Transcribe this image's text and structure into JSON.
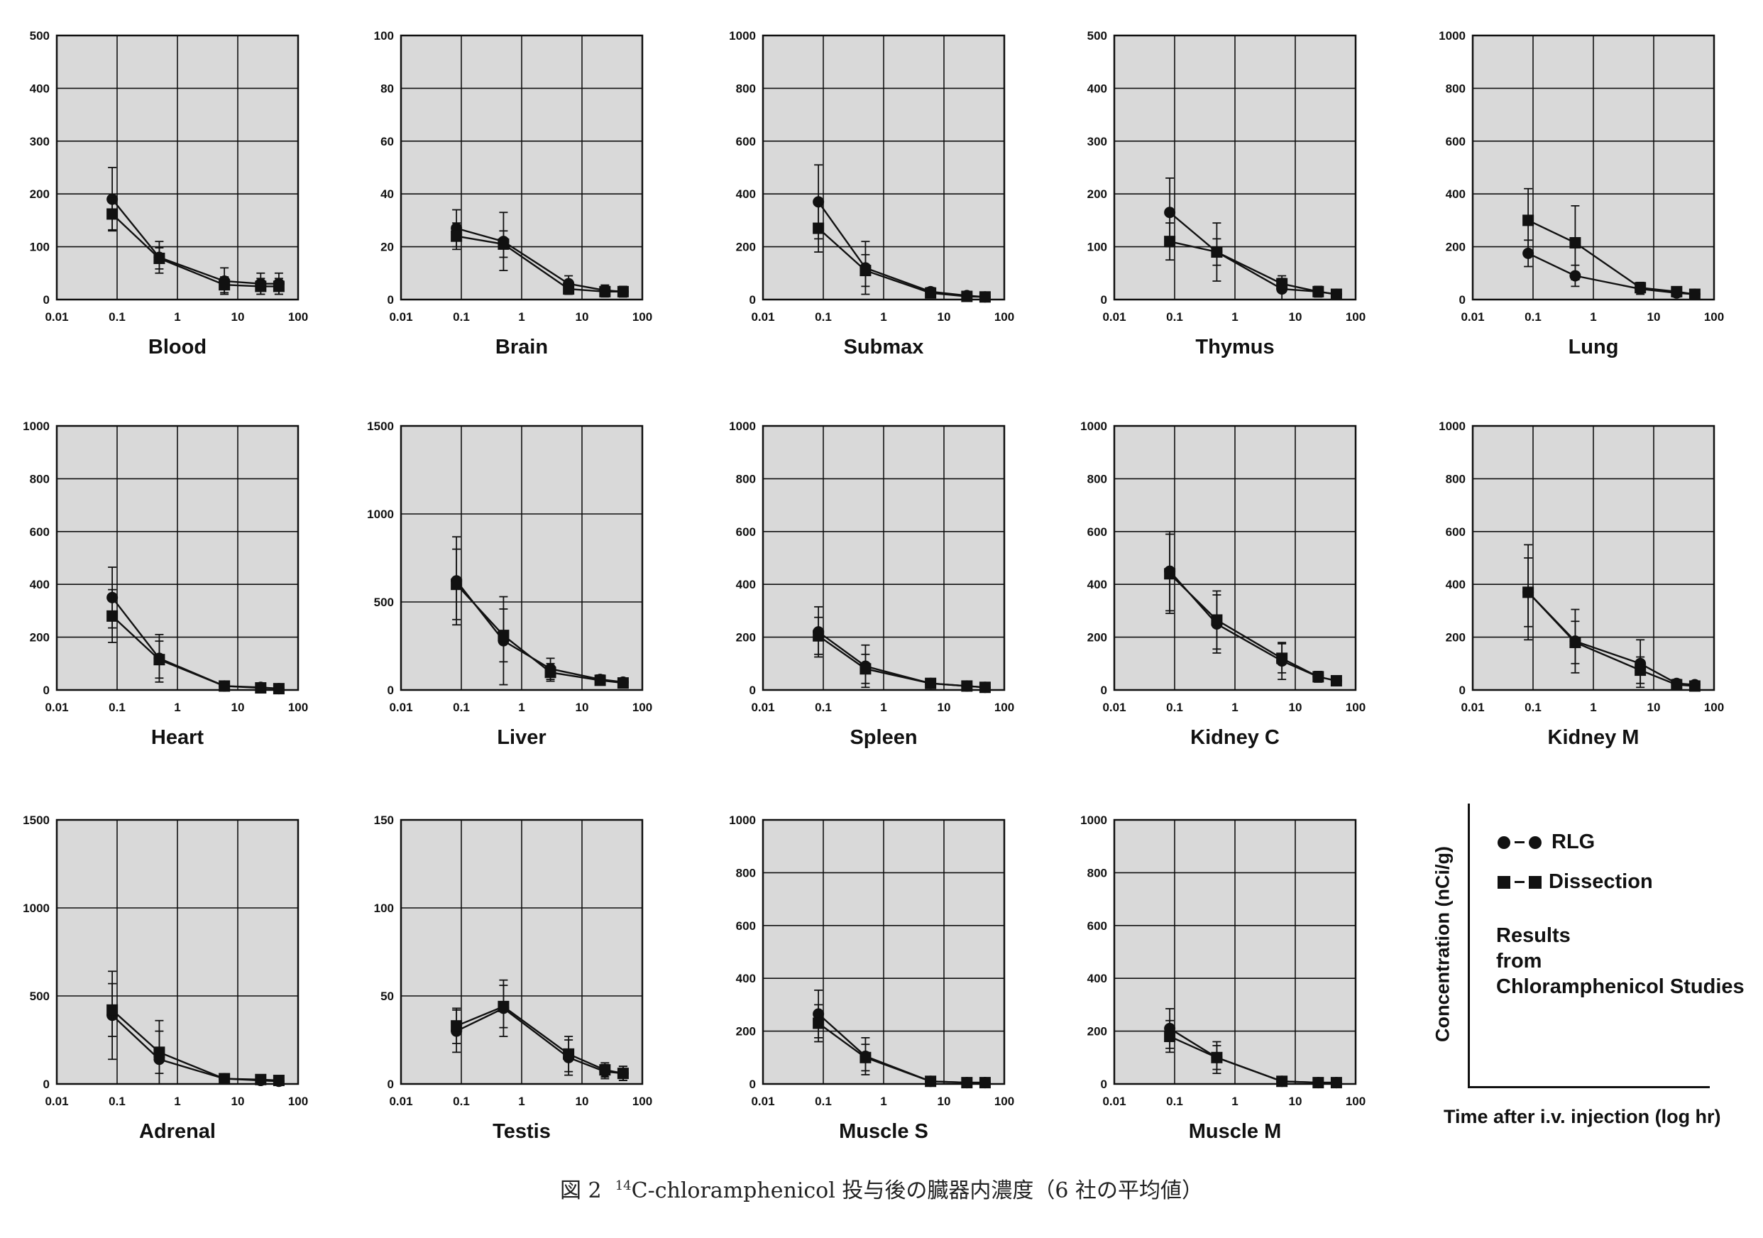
{
  "colors": {
    "panel_background": "#d9d9d9",
    "grid": "#111111",
    "series": "#111111",
    "figure_background": "#ffffff"
  },
  "legend": {
    "rlg_label": "RLG",
    "dissection_label": "Dissection",
    "results_line1": "Results",
    "results_line2": "from",
    "results_line3": "Chloramphenicol Studies",
    "y_axis_label": "Concentration (nCi/g)",
    "x_axis_label": "Time after i.v. injection (log hr)"
  },
  "caption": {
    "prefix": "図 2",
    "superscript": "14",
    "text": "C-chloramphenicol 投与後の臓器内濃度（6 社の平均値）"
  },
  "chart_data": [
    {
      "type": "line",
      "title": "Blood",
      "x_scale": "log",
      "xlim": [
        0.01,
        100
      ],
      "ylim": [
        0,
        500
      ],
      "x_ticks": [
        "0.01",
        "0.1",
        "1",
        "10",
        "100"
      ],
      "y_ticks": [
        "0",
        "100",
        "200",
        "300",
        "400",
        "500"
      ],
      "series": [
        {
          "name": "RLG",
          "marker": "circle",
          "x": [
            0.083,
            0.5,
            6,
            24,
            48
          ],
          "y": [
            190,
            80,
            35,
            30,
            30
          ],
          "err": [
            60,
            30,
            25,
            20,
            20
          ]
        },
        {
          "name": "Dissection",
          "marker": "square",
          "x": [
            0.083,
            0.5,
            6,
            24,
            48
          ],
          "y": [
            162,
            78,
            28,
            25,
            25
          ],
          "err": [
            30,
            20,
            15,
            15,
            15
          ]
        }
      ]
    },
    {
      "type": "line",
      "title": "Brain",
      "x_scale": "log",
      "xlim": [
        0.01,
        100
      ],
      "ylim": [
        0,
        100
      ],
      "x_ticks": [
        "0.01",
        "0.1",
        "1",
        "10",
        "100"
      ],
      "y_ticks": [
        "0",
        "20",
        "40",
        "60",
        "80",
        "100"
      ],
      "series": [
        {
          "name": "RLG",
          "marker": "circle",
          "x": [
            0.083,
            0.5,
            6,
            24,
            48
          ],
          "y": [
            27,
            22,
            6,
            3.5,
            3
          ],
          "err": [
            7,
            11,
            3,
            2,
            2
          ]
        },
        {
          "name": "Dissection",
          "marker": "square",
          "x": [
            0.083,
            0.5,
            6,
            24,
            48
          ],
          "y": [
            24,
            21,
            4,
            3,
            3
          ],
          "err": [
            5,
            5,
            2,
            2,
            2
          ]
        }
      ]
    },
    {
      "type": "line",
      "title": "Submax",
      "x_scale": "log",
      "xlim": [
        0.01,
        100
      ],
      "ylim": [
        0,
        1000
      ],
      "x_ticks": [
        "0.01",
        "0.1",
        "1",
        "10",
        "100"
      ],
      "y_ticks": [
        "0",
        "200",
        "400",
        "600",
        "800",
        "1000"
      ],
      "series": [
        {
          "name": "RLG",
          "marker": "circle",
          "x": [
            0.083,
            0.5,
            6,
            24,
            48
          ],
          "y": [
            370,
            120,
            30,
            15,
            10
          ],
          "err": [
            140,
            100,
            15,
            8,
            8
          ]
        },
        {
          "name": "Dissection",
          "marker": "square",
          "x": [
            0.083,
            0.5,
            6,
            24,
            48
          ],
          "y": [
            270,
            110,
            25,
            12,
            10
          ],
          "err": [
            90,
            60,
            12,
            8,
            8
          ]
        }
      ]
    },
    {
      "type": "line",
      "title": "Thymus",
      "x_scale": "log",
      "xlim": [
        0.01,
        100
      ],
      "ylim": [
        0,
        500
      ],
      "x_ticks": [
        "0.01",
        "0.1",
        "1",
        "10",
        "100"
      ],
      "y_ticks": [
        "0",
        "100",
        "200",
        "300",
        "400",
        "500"
      ],
      "series": [
        {
          "name": "RLG",
          "marker": "circle",
          "x": [
            0.083,
            0.5,
            6,
            24,
            48
          ],
          "y": [
            165,
            90,
            20,
            15,
            10
          ],
          "err": [
            65,
            55,
            20,
            10,
            8
          ]
        },
        {
          "name": "Dissection",
          "marker": "square",
          "x": [
            0.083,
            0.5,
            6,
            24,
            48
          ],
          "y": [
            110,
            90,
            30,
            15,
            10
          ],
          "err": [
            35,
            25,
            15,
            10,
            8
          ]
        }
      ]
    },
    {
      "type": "line",
      "title": "Lung",
      "x_scale": "log",
      "xlim": [
        0.01,
        100
      ],
      "ylim": [
        0,
        1000
      ],
      "x_ticks": [
        "0.01",
        "0.1",
        "1",
        "10",
        "100"
      ],
      "y_ticks": [
        "0",
        "200",
        "400",
        "600",
        "800",
        "1000"
      ],
      "series": [
        {
          "name": "RLG",
          "marker": "circle",
          "x": [
            0.083,
            0.5,
            6,
            24,
            48
          ],
          "y": [
            175,
            90,
            40,
            25,
            20
          ],
          "err": [
            50,
            40,
            20,
            15,
            12
          ]
        },
        {
          "name": "Dissection",
          "marker": "square",
          "x": [
            0.083,
            0.5,
            6,
            24,
            48
          ],
          "y": [
            300,
            215,
            45,
            30,
            20
          ],
          "err": [
            120,
            140,
            20,
            15,
            12
          ]
        }
      ]
    },
    {
      "type": "line",
      "title": "Heart",
      "x_scale": "log",
      "xlim": [
        0.01,
        100
      ],
      "ylim": [
        0,
        1000
      ],
      "x_ticks": [
        "0.01",
        "0.1",
        "1",
        "10",
        "100"
      ],
      "y_ticks": [
        "0",
        "200",
        "400",
        "600",
        "800",
        "1000"
      ],
      "series": [
        {
          "name": "RLG",
          "marker": "circle",
          "x": [
            0.083,
            0.5,
            6,
            24,
            48
          ],
          "y": [
            350,
            120,
            15,
            10,
            5
          ],
          "err": [
            115,
            90,
            12,
            8,
            5
          ]
        },
        {
          "name": "Dissection",
          "marker": "square",
          "x": [
            0.083,
            0.5,
            6,
            24,
            48
          ],
          "y": [
            280,
            115,
            15,
            8,
            5
          ],
          "err": [
            100,
            70,
            10,
            6,
            5
          ]
        }
      ]
    },
    {
      "type": "line",
      "title": "Liver",
      "x_scale": "log",
      "xlim": [
        0.01,
        100
      ],
      "ylim": [
        0,
        1500
      ],
      "x_ticks": [
        "0.01",
        "0.1",
        "1",
        "10",
        "100"
      ],
      "y_ticks": [
        "0",
        "500",
        "1000",
        "1500"
      ],
      "series": [
        {
          "name": "RLG",
          "marker": "circle",
          "x": [
            0.083,
            0.5,
            3,
            20,
            48
          ],
          "y": [
            620,
            280,
            120,
            60,
            45
          ],
          "err": [
            250,
            250,
            60,
            25,
            20
          ]
        },
        {
          "name": "Dissection",
          "marker": "square",
          "x": [
            0.083,
            0.5,
            3,
            20,
            48
          ],
          "y": [
            600,
            310,
            100,
            55,
            40
          ],
          "err": [
            200,
            150,
            50,
            20,
            15
          ]
        }
      ]
    },
    {
      "type": "line",
      "title": "Spleen",
      "x_scale": "log",
      "xlim": [
        0.01,
        100
      ],
      "ylim": [
        0,
        1000
      ],
      "x_ticks": [
        "0.01",
        "0.1",
        "1",
        "10",
        "100"
      ],
      "y_ticks": [
        "0",
        "200",
        "400",
        "600",
        "800",
        "1000"
      ],
      "series": [
        {
          "name": "RLG",
          "marker": "circle",
          "x": [
            0.083,
            0.5,
            6,
            24,
            48
          ],
          "y": [
            220,
            90,
            25,
            15,
            10
          ],
          "err": [
            95,
            80,
            15,
            10,
            8
          ]
        },
        {
          "name": "Dissection",
          "marker": "square",
          "x": [
            0.083,
            0.5,
            6,
            24,
            48
          ],
          "y": [
            205,
            80,
            25,
            15,
            10
          ],
          "err": [
            70,
            55,
            12,
            8,
            8
          ]
        }
      ]
    },
    {
      "type": "line",
      "title": "Kidney C",
      "x_scale": "log",
      "xlim": [
        0.01,
        100
      ],
      "ylim": [
        0,
        1000
      ],
      "x_ticks": [
        "0.01",
        "0.1",
        "1",
        "10",
        "100"
      ],
      "y_ticks": [
        "0",
        "200",
        "400",
        "600",
        "800",
        "1000"
      ],
      "series": [
        {
          "name": "RLG",
          "marker": "circle",
          "x": [
            0.083,
            0.5,
            6,
            24,
            48
          ],
          "y": [
            450,
            250,
            110,
            50,
            35
          ],
          "err": [
            150,
            110,
            70,
            20,
            15
          ]
        },
        {
          "name": "Dissection",
          "marker": "square",
          "x": [
            0.083,
            0.5,
            6,
            24,
            48
          ],
          "y": [
            440,
            265,
            120,
            50,
            35
          ],
          "err": [
            150,
            110,
            55,
            20,
            15
          ]
        }
      ]
    },
    {
      "type": "line",
      "title": "Kidney M",
      "x_scale": "log",
      "xlim": [
        0.01,
        100
      ],
      "ylim": [
        0,
        1000
      ],
      "x_ticks": [
        "0.01",
        "0.1",
        "1",
        "10",
        "100"
      ],
      "y_ticks": [
        "0",
        "200",
        "400",
        "600",
        "800",
        "1000"
      ],
      "series": [
        {
          "name": "RLG",
          "marker": "circle",
          "x": [
            0.083,
            0.5,
            6,
            24,
            48
          ],
          "y": [
            370,
            185,
            100,
            25,
            20
          ],
          "err": [
            180,
            120,
            90,
            15,
            10
          ]
        },
        {
          "name": "Dissection",
          "marker": "square",
          "x": [
            0.083,
            0.5,
            6,
            24,
            48
          ],
          "y": [
            370,
            180,
            75,
            20,
            15
          ],
          "err": [
            130,
            80,
            50,
            15,
            10
          ]
        }
      ]
    },
    {
      "type": "line",
      "title": "Adrenal",
      "x_scale": "log",
      "xlim": [
        0.01,
        100
      ],
      "ylim": [
        0,
        1500
      ],
      "x_ticks": [
        "0.01",
        "0.1",
        "1",
        "10",
        "100"
      ],
      "y_ticks": [
        "0",
        "500",
        "1000",
        "1500"
      ],
      "series": [
        {
          "name": "RLG",
          "marker": "circle",
          "x": [
            0.083,
            0.5,
            6,
            24,
            48
          ],
          "y": [
            390,
            140,
            30,
            20,
            15
          ],
          "err": [
            250,
            220,
            20,
            15,
            10
          ]
        },
        {
          "name": "Dissection",
          "marker": "square",
          "x": [
            0.083,
            0.5,
            6,
            24,
            48
          ],
          "y": [
            420,
            180,
            30,
            25,
            20
          ],
          "err": [
            150,
            120,
            20,
            15,
            10
          ]
        }
      ]
    },
    {
      "type": "line",
      "title": "Testis",
      "x_scale": "log",
      "xlim": [
        0.01,
        100
      ],
      "ylim": [
        0,
        150
      ],
      "x_ticks": [
        "0.01",
        "0.1",
        "1",
        "10",
        "100"
      ],
      "y_ticks": [
        "0",
        "50",
        "100",
        "150"
      ],
      "series": [
        {
          "name": "RLG",
          "marker": "circle",
          "x": [
            0.083,
            0.5,
            6,
            24,
            48
          ],
          "y": [
            30,
            43,
            15,
            7,
            6
          ],
          "err": [
            12,
            16,
            10,
            4,
            4
          ]
        },
        {
          "name": "Dissection",
          "marker": "square",
          "x": [
            0.083,
            0.5,
            6,
            24,
            48
          ],
          "y": [
            33,
            44,
            17,
            8,
            6
          ],
          "err": [
            10,
            12,
            10,
            4,
            4
          ]
        }
      ]
    },
    {
      "type": "line",
      "title": "Muscle S",
      "x_scale": "log",
      "xlim": [
        0.01,
        100
      ],
      "ylim": [
        0,
        1000
      ],
      "x_ticks": [
        "0.01",
        "0.1",
        "1",
        "10",
        "100"
      ],
      "y_ticks": [
        "0",
        "200",
        "400",
        "600",
        "800",
        "1000"
      ],
      "series": [
        {
          "name": "RLG",
          "marker": "circle",
          "x": [
            0.083,
            0.5,
            6,
            24,
            48
          ],
          "y": [
            265,
            105,
            10,
            5,
            5
          ],
          "err": [
            90,
            70,
            10,
            5,
            5
          ]
        },
        {
          "name": "Dissection",
          "marker": "square",
          "x": [
            0.083,
            0.5,
            6,
            24,
            48
          ],
          "y": [
            230,
            100,
            10,
            5,
            5
          ],
          "err": [
            70,
            50,
            10,
            5,
            5
          ]
        }
      ]
    },
    {
      "type": "line",
      "title": "Muscle M",
      "x_scale": "log",
      "xlim": [
        0.01,
        100
      ],
      "ylim": [
        0,
        1000
      ],
      "x_ticks": [
        "0.01",
        "0.1",
        "1",
        "10",
        "100"
      ],
      "y_ticks": [
        "0",
        "200",
        "400",
        "600",
        "800",
        "1000"
      ],
      "series": [
        {
          "name": "RLG",
          "marker": "circle",
          "x": [
            0.083,
            0.5,
            6,
            24,
            48
          ],
          "y": [
            210,
            100,
            10,
            5,
            5
          ],
          "err": [
            75,
            60,
            8,
            5,
            5
          ]
        },
        {
          "name": "Dissection",
          "marker": "square",
          "x": [
            0.083,
            0.5,
            6,
            24,
            48
          ],
          "y": [
            180,
            100,
            10,
            5,
            5
          ],
          "err": [
            60,
            45,
            8,
            5,
            5
          ]
        }
      ]
    }
  ]
}
